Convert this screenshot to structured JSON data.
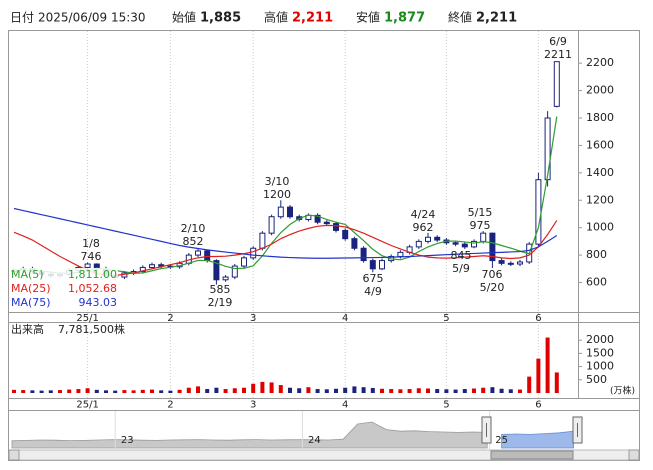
{
  "header": {
    "date_label": "日付",
    "date": "2025/06/09 15:30",
    "open_label": "始値",
    "open": "1,885",
    "high_label": "高値",
    "high": "2,211",
    "low_label": "安値",
    "low": "1,877",
    "close_label": "終値",
    "close": "2,211"
  },
  "chart_data": [
    {
      "type": "candlestick",
      "categories": [
        null,
        null,
        null,
        null,
        null,
        null,
        null,
        null,
        "25/1",
        null,
        null,
        null,
        null,
        null,
        null,
        null,
        null,
        "2",
        null,
        null,
        null,
        null,
        null,
        null,
        null,
        null,
        "3",
        null,
        null,
        null,
        null,
        null,
        null,
        null,
        null,
        null,
        "4",
        null,
        null,
        null,
        null,
        null,
        null,
        null,
        null,
        null,
        null,
        "5",
        null,
        null,
        null,
        null,
        null,
        null,
        null,
        null,
        null,
        "6",
        null,
        null
      ],
      "open": [
        680,
        690,
        700,
        680,
        660,
        650,
        660,
        690,
        710,
        735,
        700,
        650,
        640,
        670,
        680,
        710,
        730,
        720,
        715,
        740,
        800,
        830,
        760,
        620,
        640,
        720,
        780,
        850,
        960,
        1080,
        1150,
        1080,
        1060,
        1090,
        1040,
        1030,
        980,
        920,
        850,
        760,
        700,
        760,
        790,
        820,
        860,
        900,
        930,
        910,
        890,
        880,
        860,
        900,
        960,
        760,
        740,
        735,
        750,
        880,
        1350,
        1885
      ],
      "high": [
        705,
        715,
        715,
        695,
        675,
        675,
        705,
        725,
        746,
        740,
        715,
        665,
        685,
        695,
        725,
        745,
        745,
        735,
        755,
        815,
        852,
        840,
        770,
        655,
        735,
        795,
        865,
        975,
        1095,
        1200,
        1165,
        1095,
        1105,
        1105,
        1055,
        1045,
        995,
        935,
        865,
        775,
        775,
        805,
        835,
        875,
        915,
        962,
        945,
        925,
        905,
        895,
        915,
        975,
        965,
        775,
        755,
        765,
        895,
        1400,
        1850,
        2211
      ],
      "low": [
        665,
        675,
        665,
        645,
        635,
        635,
        645,
        675,
        695,
        685,
        635,
        620,
        625,
        655,
        665,
        695,
        705,
        700,
        700,
        725,
        785,
        745,
        585,
        605,
        625,
        705,
        765,
        835,
        945,
        1065,
        1065,
        1045,
        1045,
        1025,
        1015,
        965,
        905,
        835,
        745,
        675,
        690,
        745,
        775,
        805,
        845,
        885,
        895,
        875,
        865,
        845,
        850,
        885,
        706,
        725,
        720,
        720,
        735,
        860,
        1300,
        1877
      ],
      "close": [
        690,
        700,
        680,
        660,
        650,
        660,
        690,
        710,
        735,
        700,
        650,
        640,
        670,
        680,
        710,
        730,
        720,
        715,
        740,
        800,
        830,
        760,
        620,
        640,
        720,
        780,
        850,
        960,
        1080,
        1150,
        1080,
        1060,
        1090,
        1040,
        1030,
        980,
        920,
        850,
        760,
        700,
        760,
        790,
        820,
        860,
        900,
        930,
        910,
        890,
        880,
        860,
        900,
        960,
        760,
        740,
        735,
        750,
        880,
        1350,
        1800,
        2211
      ],
      "up_color": "#ffffff",
      "down_color": "#1a237e",
      "candle_edge": "#1a237e",
      "series": [
        {
          "name": "MA(5)",
          "color": "#2e9e2e",
          "value_label": "1,811.00",
          "values": [
            690,
            690,
            688,
            684,
            676,
            668,
            668,
            674,
            689,
            705,
            697,
            687,
            679,
            667,
            670,
            686,
            702,
            711,
            723,
            741,
            761,
            761,
            742,
            718,
            702,
            704,
            722,
            794,
            886,
            964,
            1024,
            1066,
            1092,
            1084,
            1060,
            1040,
            1024,
            964,
            906,
            842,
            796,
            772,
            766,
            786,
            826,
            860,
            884,
            902,
            902,
            896,
            888,
            898,
            890,
            870,
            851,
            829,
            810,
            1000,
            1380,
            1811
          ]
        },
        {
          "name": "MA(25)",
          "color": "#e02020",
          "value_label": "1,052.68",
          "values": [
            966,
            940,
            910,
            870,
            830,
            790,
            755,
            720,
            690,
            665,
            652,
            652,
            660,
            670,
            685,
            700,
            715,
            730,
            745,
            765,
            780,
            790,
            790,
            792,
            800,
            810,
            825,
            850,
            880,
            920,
            950,
            975,
            995,
            1010,
            1017,
            1015,
            1005,
            985,
            960,
            930,
            900,
            870,
            845,
            820,
            800,
            785,
            780,
            778,
            780,
            785,
            790,
            795,
            790,
            780,
            775,
            780,
            800,
            860,
            950,
            1052.68
          ]
        },
        {
          "name": "MA(75)",
          "color": "#2233cc",
          "value_label": "943.03",
          "values": [
            1140,
            1125,
            1110,
            1095,
            1080,
            1065,
            1050,
            1035,
            1020,
            1005,
            990,
            975,
            960,
            945,
            930,
            915,
            900,
            885,
            870,
            858,
            848,
            838,
            830,
            822,
            815,
            808,
            800,
            795,
            790,
            785,
            782,
            780,
            778,
            777,
            777,
            778,
            779,
            780,
            781,
            782,
            783,
            785,
            787,
            790,
            793,
            796,
            800,
            803,
            806,
            809,
            812,
            815,
            818,
            820,
            823,
            826,
            835,
            860,
            900,
            943.03
          ]
        }
      ],
      "annotations": [
        {
          "date": "1/8",
          "value": 746
        },
        {
          "date": "2/10",
          "value": 852
        },
        {
          "date": "3/10",
          "value": 1200
        },
        {
          "date": "4/24",
          "value": 962
        },
        {
          "date": "5/15",
          "value": 975
        },
        {
          "date": "6/9",
          "value": 2211
        },
        {
          "value": 585,
          "date": "2/19"
        },
        {
          "value": 675,
          "date": "4/9"
        },
        {
          "value": 845,
          "date": "5/9"
        },
        {
          "value": 706,
          "date": "5/20"
        }
      ],
      "ylim": [
        385,
        2420
      ],
      "yticks": [
        600,
        800,
        1000,
        1200,
        1400,
        1600,
        1800,
        2000,
        2200
      ],
      "grid": true
    },
    {
      "type": "bar",
      "title": "出来高",
      "total_label": "7,781,500株",
      "ylabel": "(万株)",
      "values": [
        120,
        110,
        100,
        90,
        100,
        110,
        130,
        150,
        180,
        120,
        100,
        90,
        110,
        100,
        120,
        130,
        100,
        90,
        120,
        200,
        250,
        150,
        200,
        150,
        180,
        200,
        350,
        420,
        400,
        300,
        200,
        180,
        220,
        150,
        140,
        160,
        200,
        250,
        220,
        190,
        160,
        150,
        140,
        150,
        180,
        170,
        150,
        140,
        130,
        150,
        170,
        200,
        220,
        160,
        140,
        130,
        620,
        1300,
        2100,
        778.15
      ],
      "up_color": "#e00000",
      "down_color": "#1a237e",
      "ylim": [
        0,
        2650
      ],
      "yticks": [
        500,
        1000,
        1500,
        2000
      ]
    },
    {
      "type": "area",
      "categories": [
        null,
        null,
        null,
        null,
        null,
        null,
        null,
        null,
        "23",
        null,
        null,
        null,
        null,
        null,
        null,
        null,
        null,
        null,
        null,
        null,
        null,
        "24",
        null,
        null,
        null,
        null,
        null,
        null,
        null,
        null,
        null,
        null,
        null,
        null,
        "25",
        null,
        null,
        null,
        null,
        null
      ],
      "values": [
        480,
        490,
        500,
        495,
        485,
        490,
        500,
        510,
        505,
        495,
        490,
        500,
        505,
        510,
        500,
        495,
        505,
        510,
        500,
        505,
        510,
        505,
        500,
        520,
        900,
        950,
        760,
        720,
        730,
        710,
        700,
        690,
        700,
        690,
        640,
        650,
        640,
        660,
        680,
        720
      ],
      "color": "#c8c8c8",
      "selected_color": "#9db8ea",
      "ylim": [
        300,
        1200
      ]
    }
  ]
}
